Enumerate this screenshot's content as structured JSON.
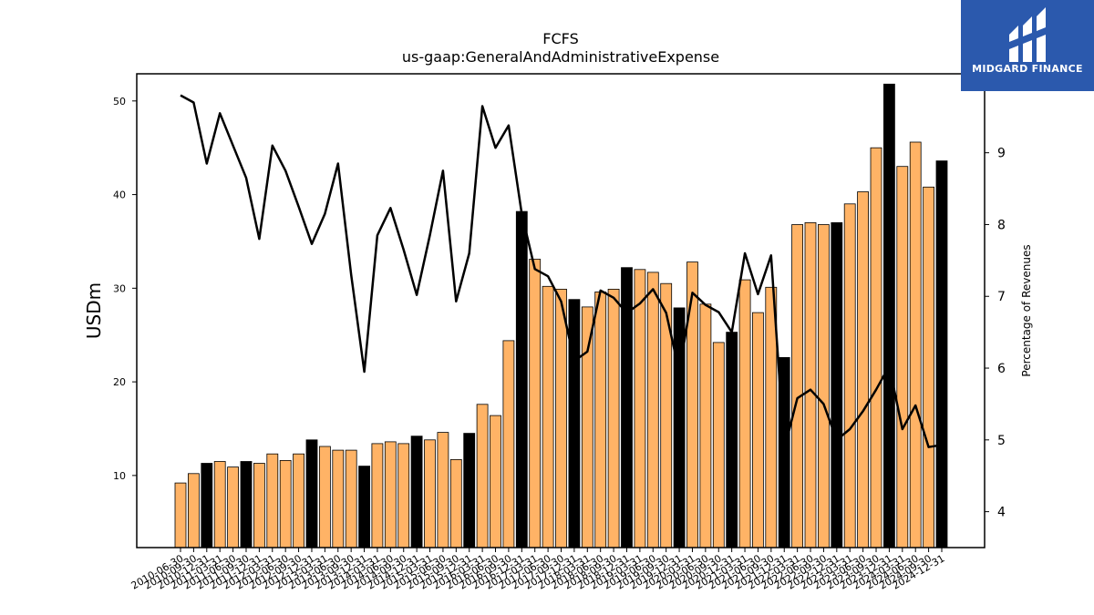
{
  "chart_data": {
    "type": "bar+line",
    "title": "FCFS",
    "subtitle": "us-gaap:GeneralAndAdministrativeExpense",
    "ylabel": "USDm",
    "y2label": "Percentage of Revenues",
    "ylim": [
      2.3,
      52.9
    ],
    "y2lim": [
      3.5,
      10.1
    ],
    "yticks": [
      10,
      20,
      30,
      40,
      50
    ],
    "y2ticks": [
      4,
      5,
      6,
      7,
      8,
      9
    ],
    "colors": {
      "quarter": "#ffb366",
      "annual": "#000000",
      "line": "#000000",
      "edge": "#000000"
    },
    "categories": [
      "2010-06-30",
      "2010-09-30",
      "2010-12-31",
      "2011-03-31",
      "2011-06-30",
      "2011-09-30",
      "2011-12-31",
      "2012-03-31",
      "2012-06-30",
      "2012-09-30",
      "2012-12-31",
      "2013-03-31",
      "2013-06-30",
      "2013-09-30",
      "2013-12-31",
      "2014-03-31",
      "2014-06-30",
      "2014-09-30",
      "2014-12-31",
      "2015-03-31",
      "2015-06-30",
      "2015-09-30",
      "2015-12-31",
      "2016-03-31",
      "2016-06-30",
      "2016-09-30",
      "2016-12-31",
      "2017-03-31",
      "2017-06-30",
      "2017-09-30",
      "2017-12-31",
      "2018-03-31",
      "2018-06-30",
      "2018-09-30",
      "2018-12-31",
      "2019-03-31",
      "2019-06-30",
      "2019-09-30",
      "2019-12-31",
      "2020-03-31",
      "2020-06-30",
      "2020-09-30",
      "2020-12-31",
      "2021-03-31",
      "2021-06-30",
      "2021-09-30",
      "2021-12-31",
      "2022-03-31",
      "2022-06-30",
      "2022-09-30",
      "2022-12-31",
      "2023-03-31",
      "2023-06-30",
      "2023-09-30",
      "2023-12-31",
      "2024-03-31",
      "2024-06-30",
      "2024-09-30",
      "2024-12-31"
    ],
    "series": [
      {
        "name": "USDm",
        "type": "bar",
        "values": [
          9.2,
          10.2,
          11.3,
          11.5,
          10.9,
          11.5,
          11.3,
          12.3,
          11.6,
          12.3,
          13.8,
          13.1,
          12.7,
          12.7,
          11.0,
          13.4,
          13.6,
          13.4,
          14.2,
          13.8,
          14.6,
          11.7,
          14.5,
          17.6,
          16.4,
          24.4,
          38.2,
          33.1,
          30.2,
          29.9,
          28.8,
          28.0,
          29.6,
          29.9,
          32.2,
          32.0,
          31.7,
          30.5,
          27.9,
          32.8,
          28.3,
          24.2,
          25.3,
          30.9,
          27.4,
          30.1,
          22.6,
          36.8,
          37.0,
          36.8,
          37.0,
          39.0,
          40.3,
          45.0,
          51.8,
          43.0,
          45.6,
          40.8,
          43.6
        ],
        "annual": [
          false,
          false,
          true,
          false,
          false,
          true,
          false,
          false,
          false,
          false,
          true,
          false,
          false,
          false,
          true,
          false,
          false,
          false,
          true,
          false,
          false,
          false,
          true,
          false,
          false,
          false,
          true,
          false,
          false,
          false,
          true,
          false,
          false,
          false,
          true,
          false,
          false,
          false,
          true,
          false,
          false,
          false,
          true,
          false,
          false,
          false,
          true,
          false,
          false,
          false,
          true,
          false,
          false,
          false,
          true,
          false,
          false,
          false,
          true
        ]
      },
      {
        "name": "Percentage of Revenues",
        "type": "line",
        "axis": "right",
        "values": [
          9.8,
          9.7,
          8.85,
          9.55,
          9.1,
          8.65,
          7.8,
          9.1,
          8.75,
          8.25,
          7.73,
          8.15,
          8.85,
          7.3,
          5.95,
          7.85,
          8.23,
          7.65,
          7.02,
          7.85,
          8.75,
          6.93,
          7.6,
          9.65,
          9.07,
          9.38,
          8.15,
          7.38,
          7.28,
          6.93,
          6.1,
          6.23,
          7.08,
          6.98,
          6.77,
          6.9,
          7.1,
          6.77,
          5.95,
          7.05,
          6.88,
          6.78,
          6.5,
          7.6,
          7.03,
          7.57,
          4.87,
          5.58,
          5.7,
          5.5,
          5.0,
          5.15,
          5.4,
          5.7,
          6.03,
          5.15,
          5.48,
          4.9,
          4.93
        ]
      }
    ]
  },
  "logo": {
    "text": "MIDGARD FINANCE"
  }
}
